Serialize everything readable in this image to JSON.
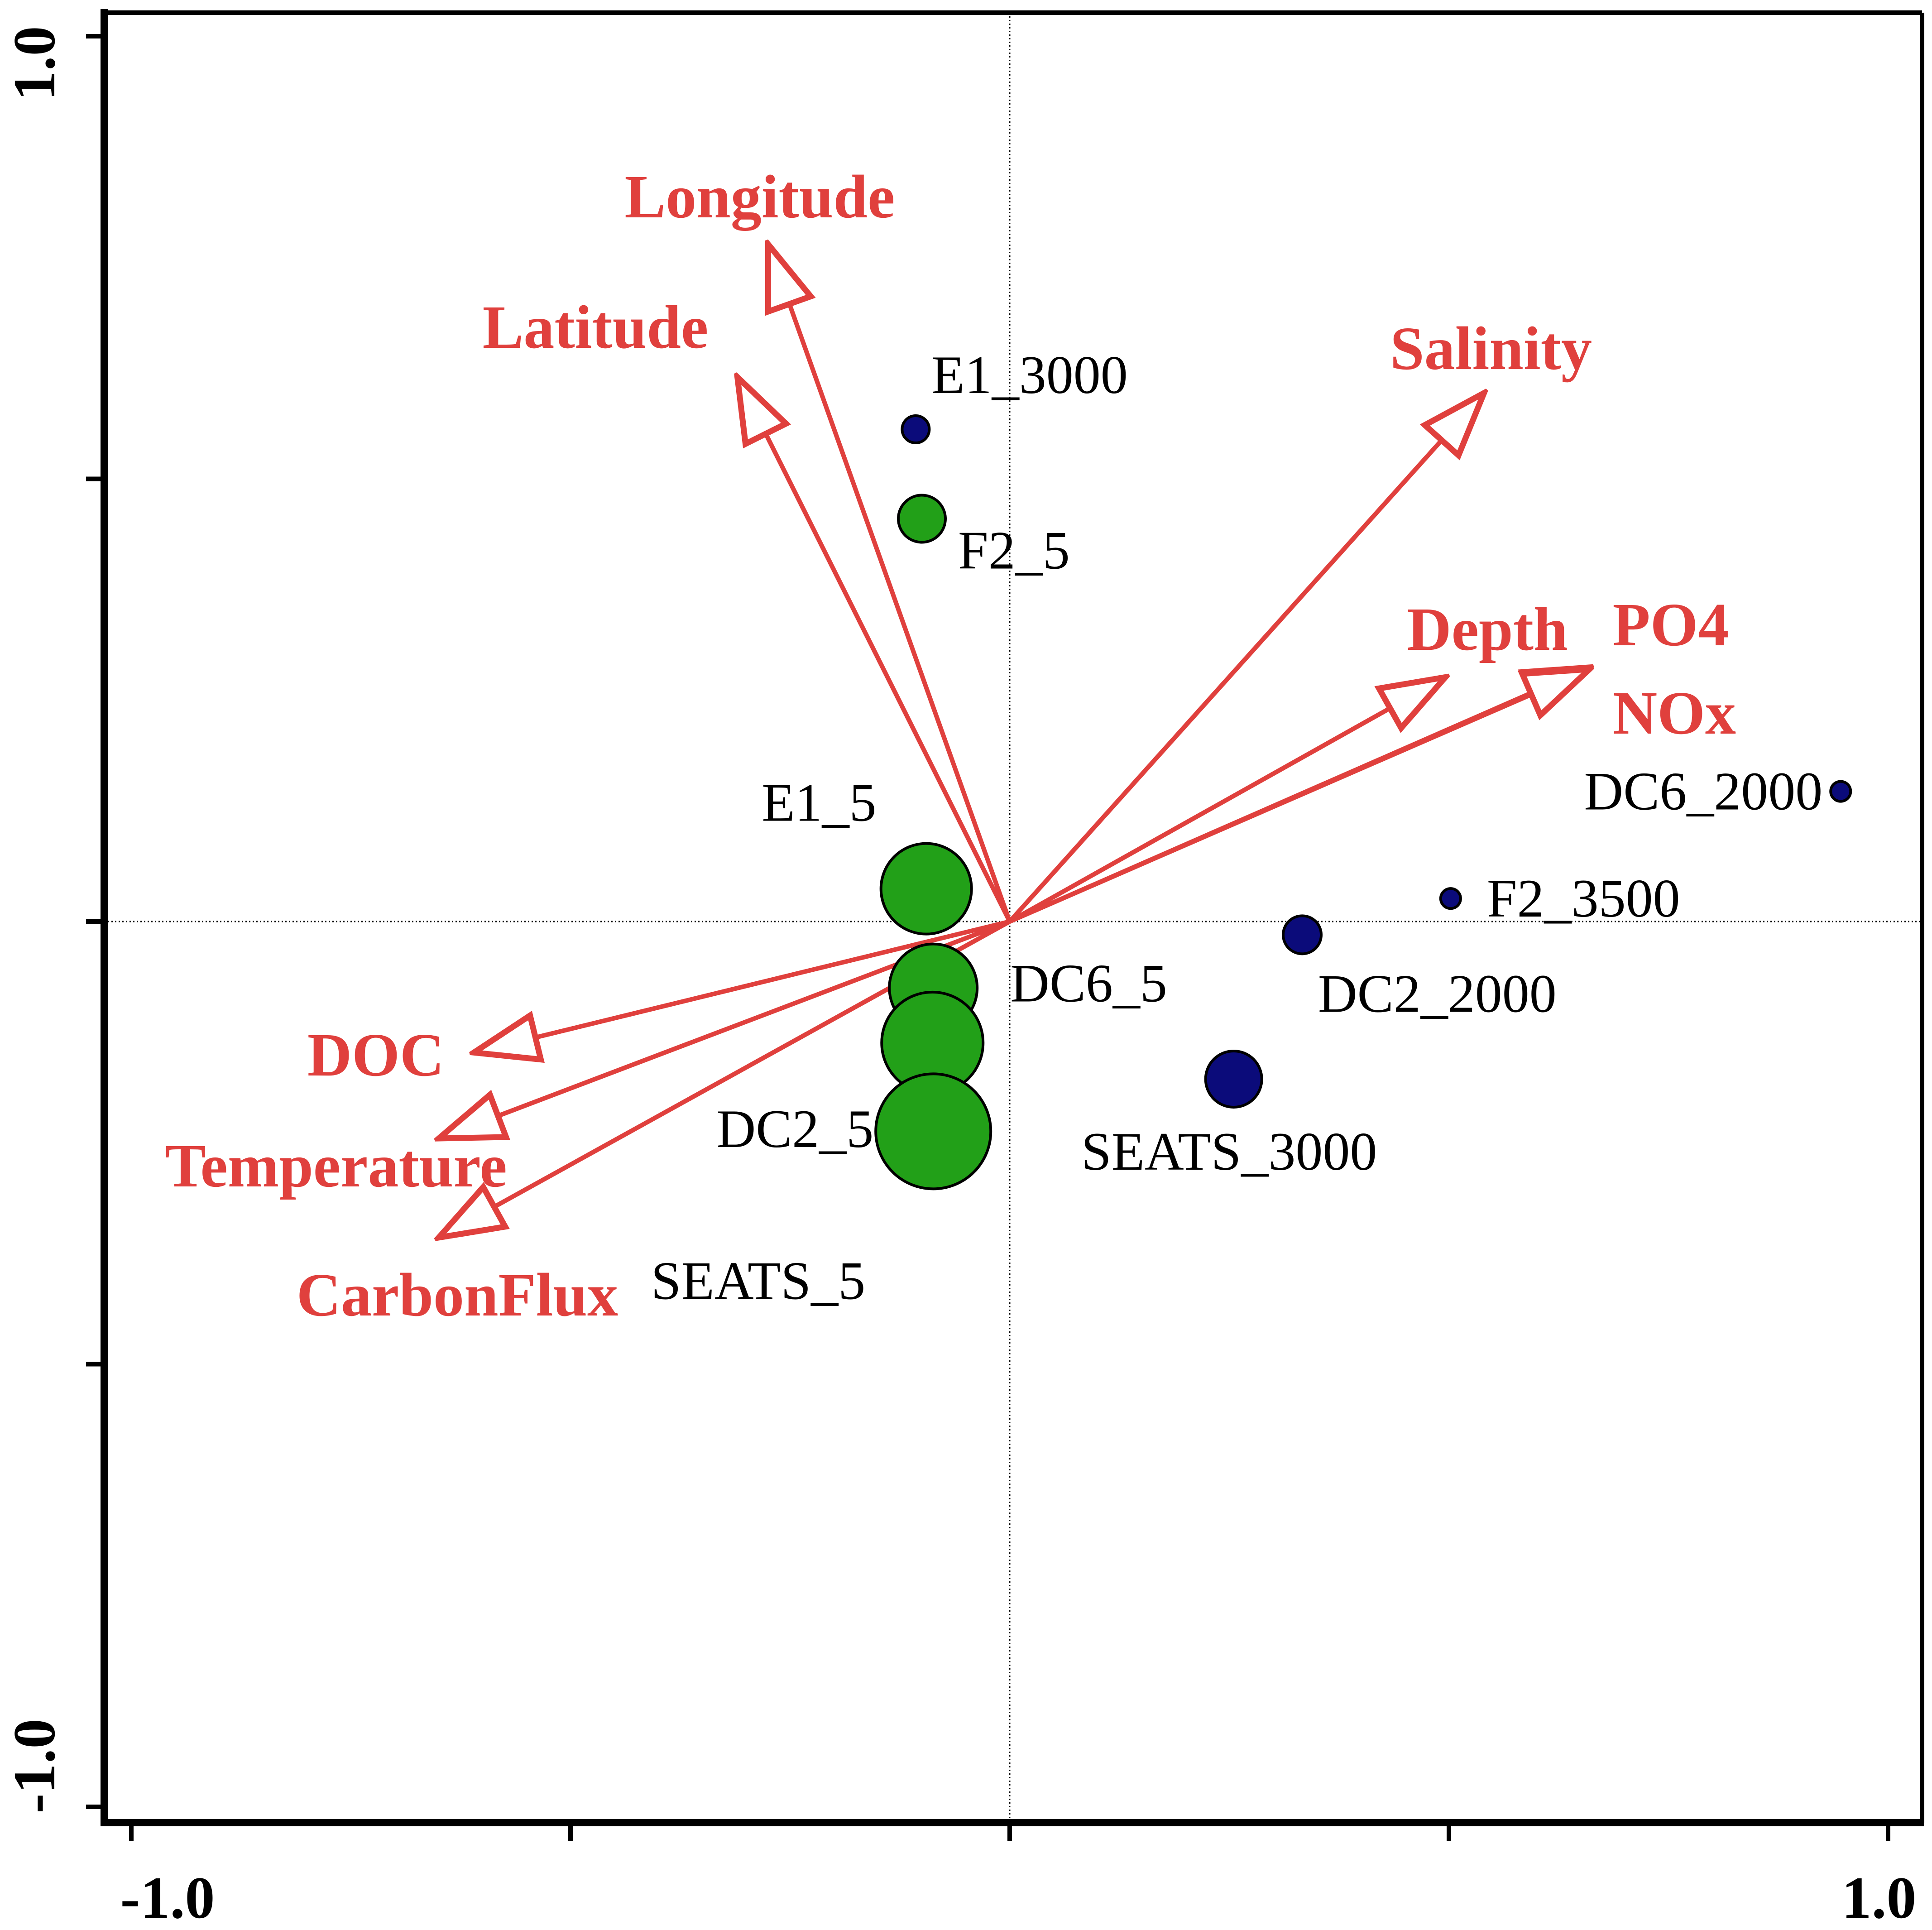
{
  "chart_data": {
    "type": "scatter",
    "subtype": "ordination biplot",
    "xlim": [
      -1.0,
      1.0
    ],
    "ylim": [
      -1.0,
      1.0
    ],
    "x_tick_labels": [
      "-1.0",
      "1.0"
    ],
    "y_tick_labels": [
      "1.0",
      "-1.0"
    ],
    "x_minor_ticks": [
      -0.5,
      0.5
    ],
    "y_minor_ticks": [
      0.5,
      -0.5
    ],
    "reference_lines": {
      "x": 0,
      "y": 0,
      "style": "dotted"
    },
    "grid": false,
    "legend": "none",
    "colors": {
      "surface_sample": "#22a018",
      "deep_sample": "#0b0b7a",
      "vector": "#e0403d",
      "axis": "#000000"
    },
    "samples": [
      {
        "label": "E1_3000",
        "x": -0.107,
        "y": 0.556,
        "size": 0.3,
        "group": "deep"
      },
      {
        "label": "F2_5",
        "x": -0.1,
        "y": 0.455,
        "size": 0.52,
        "group": "surface"
      },
      {
        "label": "E1_5",
        "x": -0.095,
        "y": 0.037,
        "size": 1.0,
        "group": "surface"
      },
      {
        "label": "DC6_5",
        "x": -0.087,
        "y": -0.075,
        "size": 0.97,
        "group": "surface"
      },
      {
        "label": "DC2_5",
        "x": -0.088,
        "y": -0.137,
        "size": 1.12,
        "group": "surface"
      },
      {
        "label": "SEATS_5",
        "x": -0.087,
        "y": -0.237,
        "size": 1.27,
        "group": "surface"
      },
      {
        "label": "DC6_2000",
        "x": 0.946,
        "y": 0.147,
        "size": 0.22,
        "group": "deep"
      },
      {
        "label": "F2_3500",
        "x": 0.502,
        "y": 0.026,
        "size": 0.22,
        "group": "deep"
      },
      {
        "label": "DC2_2000",
        "x": 0.333,
        "y": -0.015,
        "size": 0.42,
        "group": "deep"
      },
      {
        "label": "SEATS_3000",
        "x": 0.255,
        "y": -0.178,
        "size": 0.62,
        "group": "deep"
      }
    ],
    "vectors": [
      {
        "name": "Longitude",
        "x": -0.275,
        "y": 0.765
      },
      {
        "name": "Latitude",
        "x": -0.31,
        "y": 0.615
      },
      {
        "name": "Salinity",
        "x": 0.54,
        "y": 0.597
      },
      {
        "name": "Depth",
        "x": 0.496,
        "y": 0.276
      },
      {
        "name": "PO4",
        "x": 0.66,
        "y": 0.287
      },
      {
        "name": "NOx",
        "x": 0.66,
        "y": 0.285
      },
      {
        "name": "DOC",
        "x": -0.61,
        "y": -0.148
      },
      {
        "name": "Temperature",
        "x": -0.65,
        "y": -0.245
      },
      {
        "name": "CarbonFlux",
        "x": -0.65,
        "y": -0.357
      }
    ]
  }
}
